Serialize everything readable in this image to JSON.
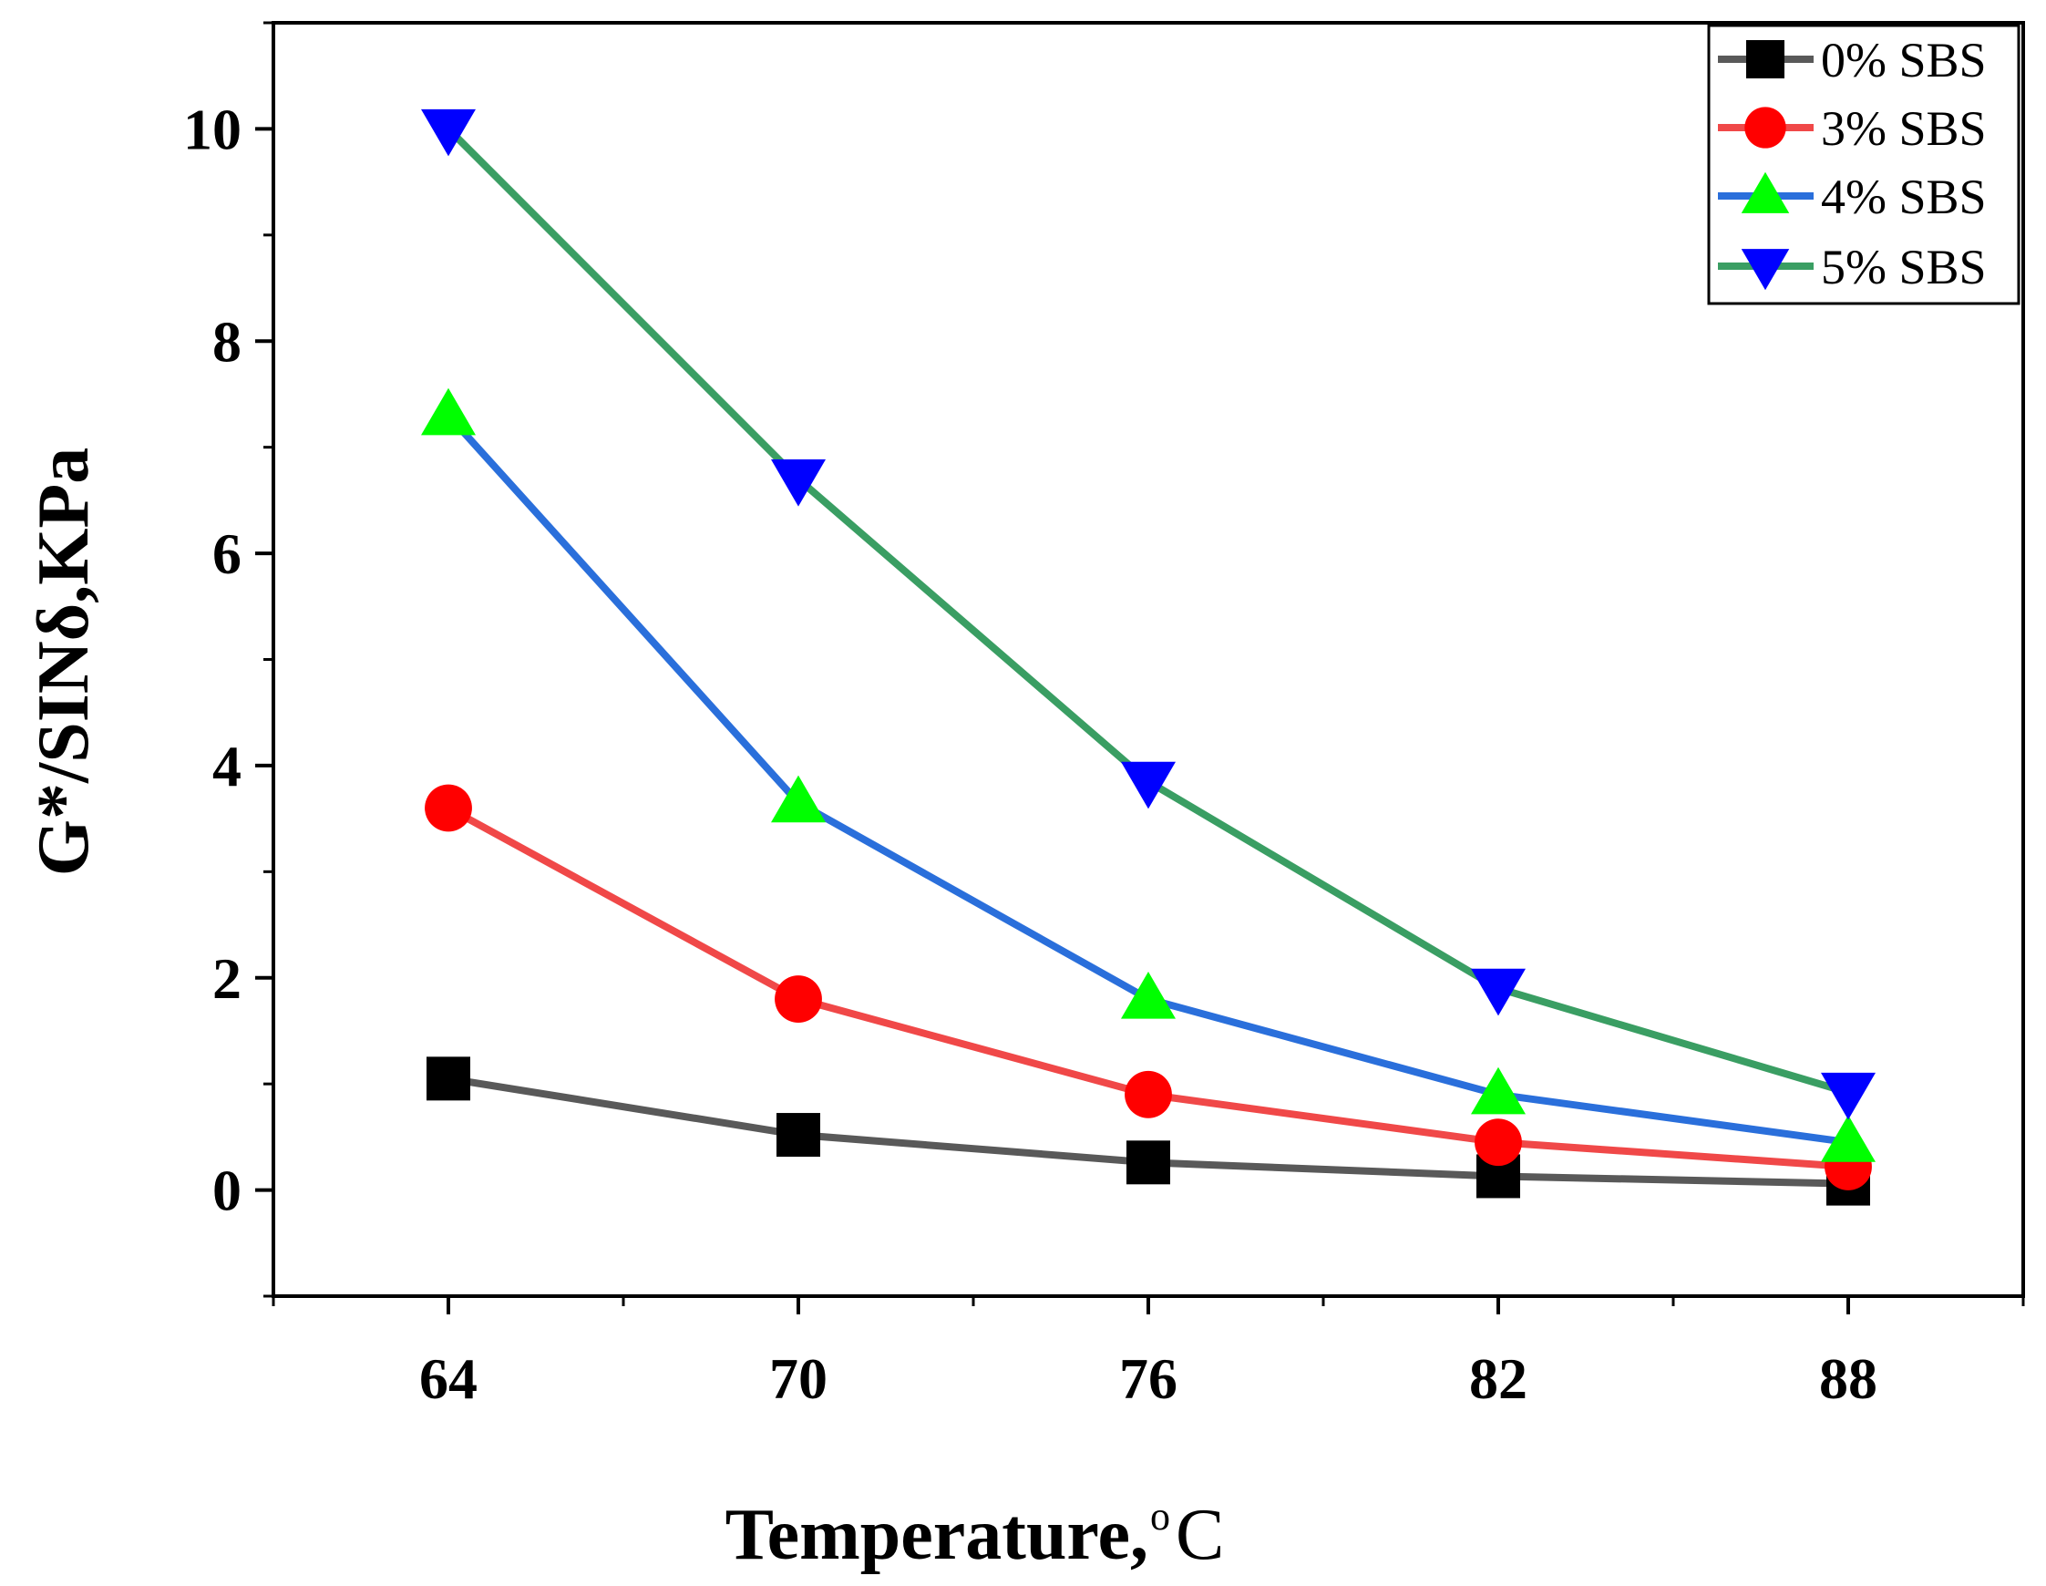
{
  "chart_data": {
    "type": "line",
    "title": "",
    "xlabel": "Temperature,",
    "xlabel_unit_sup": "o",
    "xlabel_unit": "C",
    "ylabel": "G*/SINδ,KPa",
    "categories": [
      "64",
      "70",
      "76",
      "82",
      "88"
    ],
    "x": [
      64,
      70,
      76,
      82,
      88
    ],
    "xlim": [
      61,
      91
    ],
    "ylim": [
      -1,
      11
    ],
    "yticks": [
      0,
      2,
      4,
      6,
      8,
      10
    ],
    "grid": false,
    "legend_position": "top-right",
    "series": [
      {
        "name": "0% SBS",
        "marker": "square",
        "line_color": "#595959",
        "marker_color": "#000000",
        "values": [
          1.05,
          0.52,
          0.26,
          0.13,
          0.06
        ]
      },
      {
        "name": "3% SBS",
        "marker": "circle",
        "line_color": "#f04848",
        "marker_color": "#ff0000",
        "values": [
          3.6,
          1.8,
          0.9,
          0.45,
          0.22
        ]
      },
      {
        "name": "4% SBS",
        "marker": "triangle-up",
        "line_color": "#2a6fdb",
        "marker_color": "#00ff00",
        "values": [
          7.3,
          3.65,
          1.8,
          0.9,
          0.45
        ]
      },
      {
        "name": "5% SBS",
        "marker": "triangle-down",
        "line_color": "#3a9e63",
        "marker_color": "#0000ff",
        "values": [
          10.0,
          6.7,
          3.85,
          1.9,
          0.92
        ]
      }
    ]
  }
}
